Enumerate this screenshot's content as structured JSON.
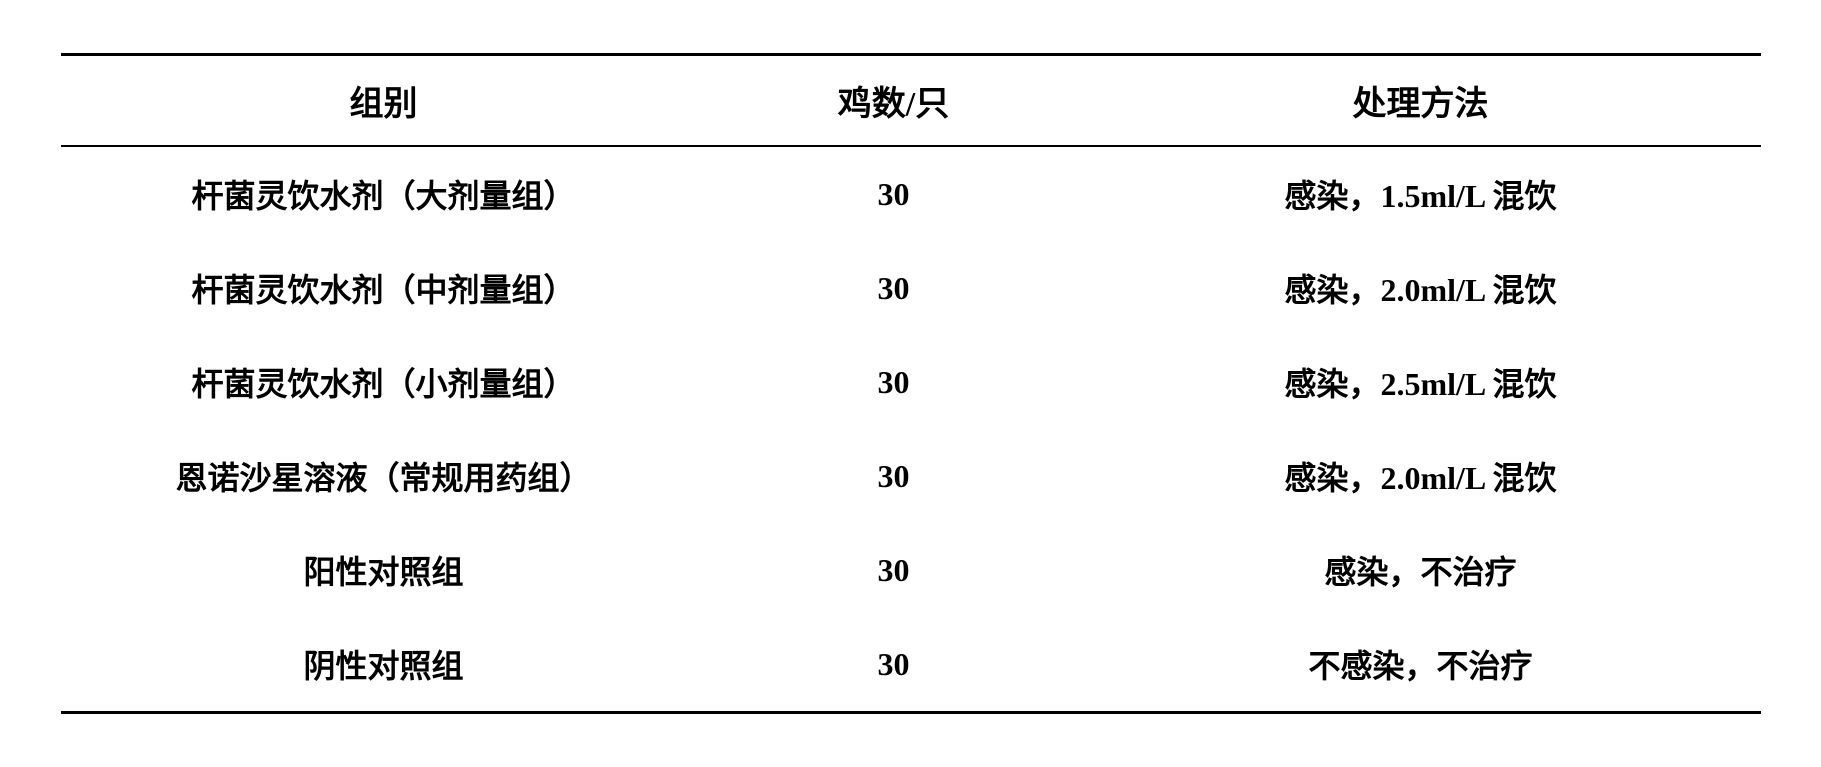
{
  "table": {
    "columns": [
      "组别",
      "鸡数/只",
      "处理方法"
    ],
    "rows": [
      [
        "杆菌灵饮水剂（大剂量组）",
        "30",
        "感染，1.5ml/L 混饮"
      ],
      [
        "杆菌灵饮水剂（中剂量组）",
        "30",
        "感染，2.0ml/L 混饮"
      ],
      [
        "杆菌灵饮水剂（小剂量组）",
        "30",
        "感染，2.5ml/L 混饮"
      ],
      [
        "恩诺沙星溶液（常规用药组）",
        "30",
        "感染，2.0ml/L 混饮"
      ],
      [
        "阳性对照组",
        "30",
        "感染，不治疗"
      ],
      [
        "阴性对照组",
        "30",
        "不感染，不治疗"
      ]
    ],
    "border_color": "#000000",
    "background_color": "#ffffff",
    "text_color": "#000000",
    "header_fontsize": 34,
    "body_fontsize": 32,
    "font_weight": "bold",
    "column_widths": [
      "38%",
      "22%",
      "40%"
    ]
  }
}
